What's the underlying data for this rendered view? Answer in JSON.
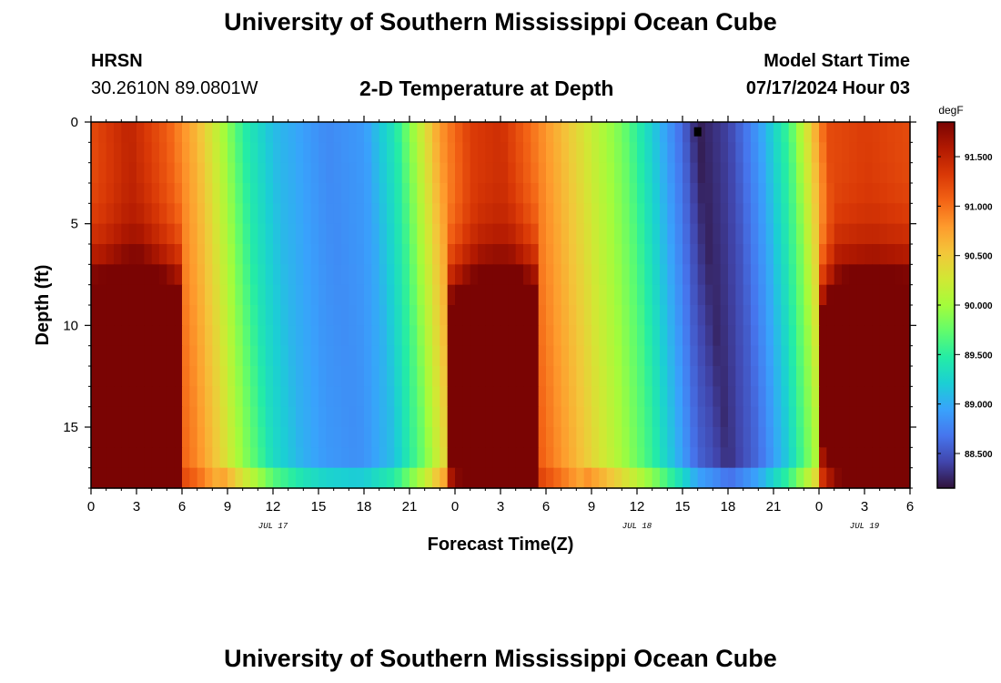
{
  "header": {
    "title": "University of Southern Mississippi Ocean Cube",
    "station_code": "HRSN",
    "station_coords": "30.2610N  89.0801W",
    "model_start_label": "Model Start Time",
    "model_start_value": "07/17/2024 Hour 03"
  },
  "footer": {
    "title": "University of Southern Mississippi Ocean Cube"
  },
  "chart_data": {
    "type": "heatmap",
    "title": "2-D Temperature at Depth",
    "xlabel": "Forecast Time(Z)",
    "ylabel": "Depth (ft)",
    "x_unit": "hours",
    "xlim": [
      0,
      54
    ],
    "x_tick_values": [
      0,
      3,
      6,
      9,
      12,
      15,
      18,
      21,
      24,
      27,
      30,
      33,
      36,
      39,
      42,
      45,
      48,
      51,
      54
    ],
    "x_tick_labels": [
      "0",
      "3",
      "6",
      "9",
      "12",
      "15",
      "18",
      "21",
      "0",
      "3",
      "6",
      "9",
      "12",
      "15",
      "18",
      "21",
      "0",
      "3",
      "6"
    ],
    "date_labels": [
      {
        "x": 12,
        "label": "JUL 17"
      },
      {
        "x": 36,
        "label": "JUL 18"
      },
      {
        "x": 51,
        "label": "JUL 19"
      }
    ],
    "ylim": [
      0,
      18
    ],
    "y_inverted": true,
    "y_tick_values": [
      0,
      5,
      10,
      15
    ],
    "y_tick_labels": [
      "0",
      "5",
      "10",
      "15"
    ],
    "colorbar": {
      "unit": "degF",
      "range": [
        88.15,
        91.85
      ],
      "tick_values": [
        88.5,
        89.0,
        89.5,
        90.0,
        90.5,
        91.0,
        91.5
      ],
      "tick_labels": [
        "88.500",
        "89.000",
        "89.500",
        "90.000",
        "90.500",
        "91.000",
        "91.500"
      ],
      "colors": [
        "#30123b",
        "#4145ab",
        "#4675ed",
        "#39a2fc",
        "#1bcfd4",
        "#24eca6",
        "#61fc6c",
        "#a4fc3b",
        "#d1e834",
        "#f3c63a",
        "#fe9b2d",
        "#f36315",
        "#d93806",
        "#b11901",
        "#7a0403"
      ]
    },
    "surface_temperature_degF": [
      {
        "x": 0,
        "v": 91.2
      },
      {
        "x": 2.5,
        "v": 91.5
      },
      {
        "x": 5,
        "v": 91.1
      },
      {
        "x": 7,
        "v": 90.6
      },
      {
        "x": 8.5,
        "v": 90.1
      },
      {
        "x": 10,
        "v": 89.5
      },
      {
        "x": 12,
        "v": 89.1
      },
      {
        "x": 15.5,
        "v": 88.8
      },
      {
        "x": 18,
        "v": 88.9
      },
      {
        "x": 20,
        "v": 89.4
      },
      {
        "x": 21.5,
        "v": 90.1
      },
      {
        "x": 23,
        "v": 90.8
      },
      {
        "x": 25,
        "v": 91.3
      },
      {
        "x": 27,
        "v": 91.4
      },
      {
        "x": 29,
        "v": 91.0
      },
      {
        "x": 32,
        "v": 90.4
      },
      {
        "x": 35,
        "v": 89.8
      },
      {
        "x": 37,
        "v": 89.2
      },
      {
        "x": 39,
        "v": 88.6
      },
      {
        "x": 40,
        "v": 88.2
      },
      {
        "x": 42,
        "v": 88.4
      },
      {
        "x": 44,
        "v": 88.9
      },
      {
        "x": 46,
        "v": 89.6
      },
      {
        "x": 47.5,
        "v": 90.5
      },
      {
        "x": 48.5,
        "v": 91.2
      },
      {
        "x": 51,
        "v": 91.3
      },
      {
        "x": 54,
        "v": 91.2
      }
    ],
    "marker": {
      "x": 40,
      "depth": 0.3
    }
  }
}
